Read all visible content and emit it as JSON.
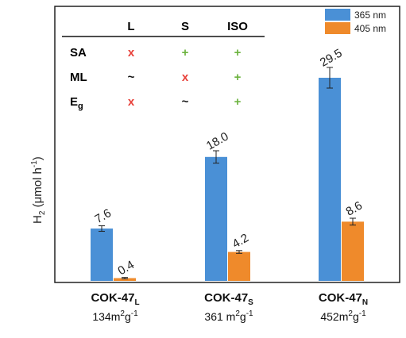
{
  "chart_data": {
    "type": "bar",
    "ylabel": "H",
    "ylabel_sub": "2",
    "ylabel_unit_open": " (μmol h",
    "ylabel_unit_exp": "-1",
    "ylabel_unit_close": ")",
    "ylim": [
      0,
      36
    ],
    "grid": false,
    "legend_position": "top-right",
    "categories": [
      {
        "name": "COK-47",
        "sub": "L",
        "area": "134m",
        "area_exp": "2",
        "area_unit": "g",
        "area_unit_exp": "-1"
      },
      {
        "name": "COK-47",
        "sub": "S",
        "area": "361 m",
        "area_exp": "2",
        "area_unit": "g",
        "area_unit_exp": "-1"
      },
      {
        "name": "COK-47",
        "sub": "N",
        "area": "452m",
        "area_exp": "2",
        "area_unit": "g",
        "area_unit_exp": "-1"
      }
    ],
    "series": [
      {
        "name": "365 nm",
        "color": "#4a90d6",
        "values": [
          7.6,
          18.0,
          29.5
        ],
        "labels": [
          "7.6",
          "18.0",
          "29.5"
        ],
        "errors": [
          0.4,
          0.9,
          1.5
        ]
      },
      {
        "name": "405 nm",
        "color": "#ef8a2b",
        "values": [
          0.4,
          4.2,
          8.6
        ],
        "labels": [
          "0.4",
          "4.2",
          "8.6"
        ],
        "errors": [
          0.1,
          0.2,
          0.5
        ]
      }
    ],
    "table": {
      "columns": [
        "L",
        "S",
        "ISO"
      ],
      "rows": [
        {
          "label": "SA",
          "label_sub": "",
          "marks": [
            "x",
            "+",
            "+"
          ]
        },
        {
          "label": "ML",
          "label_sub": "",
          "marks": [
            "~",
            "x",
            "+"
          ]
        },
        {
          "label": "E",
          "label_sub": "g",
          "marks": [
            "x",
            "~",
            "+"
          ]
        }
      ],
      "mark_colors": {
        "x": "#e8413a",
        "+": "#6cb33f",
        "~": "#111111"
      }
    }
  }
}
